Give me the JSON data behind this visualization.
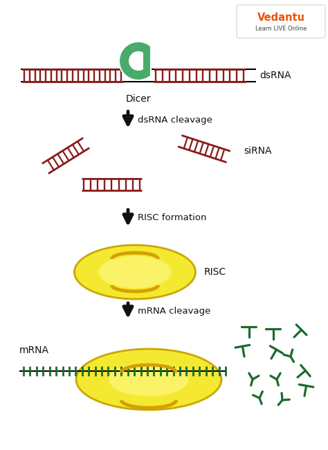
{
  "bg_color": "#ffffff",
  "dark_red": "#8B1A1A",
  "green_dicer": "#4aaa6a",
  "green_mrna": "#1a6b2a",
  "yellow_risc": "#f5e830",
  "yellow_risc_stroke": "#c8a800",
  "arrow_color": "#111111",
  "text_color": "#111111",
  "orange_vedantu": "#e8520a",
  "crescent_color": "#d4a000",
  "label_dsRNA": "dsRNA",
  "label_dicer": "Dicer",
  "label_step1": "dsRNA cleavage",
  "label_sirna": "siRNA",
  "label_step2": "RISC formation",
  "label_risc": "RISC",
  "label_step3": "mRNA cleavage",
  "label_mrna": "mRNA",
  "fig_width": 4.74,
  "fig_height": 6.5
}
